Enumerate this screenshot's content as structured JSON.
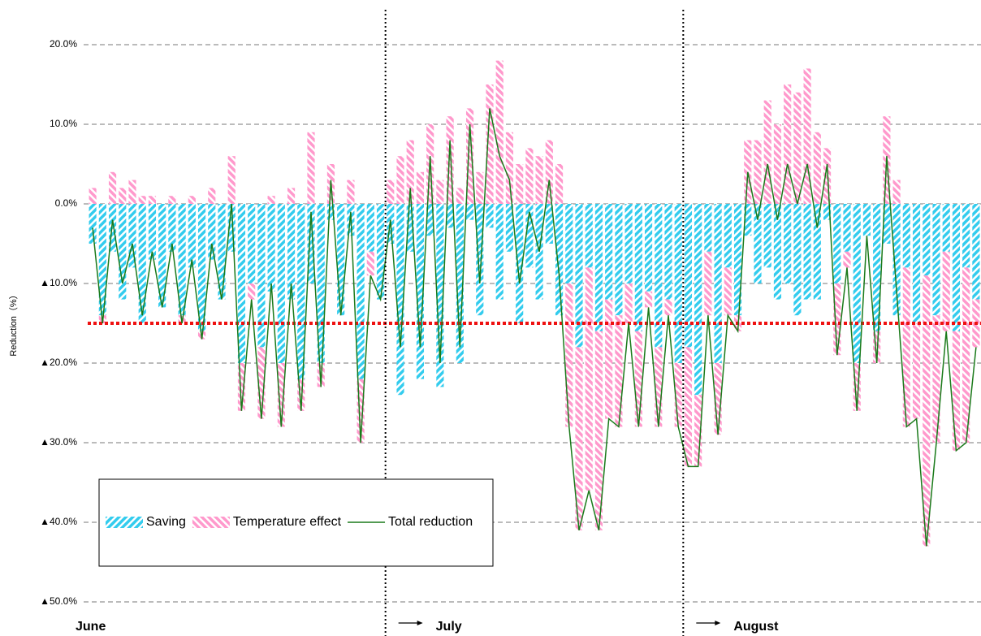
{
  "chart_data": {
    "type": "bar",
    "y_label": "Reduction（%）",
    "categories": [
      "June",
      null,
      null,
      null,
      null,
      null,
      null,
      null,
      null,
      null,
      null,
      null,
      null,
      null,
      null,
      null,
      null,
      null,
      null,
      null,
      null,
      null,
      null,
      null,
      null,
      null,
      null,
      null,
      null,
      null,
      "July",
      null,
      null,
      null,
      null,
      null,
      null,
      null,
      null,
      null,
      null,
      null,
      null,
      null,
      null,
      null,
      null,
      null,
      null,
      null,
      null,
      null,
      null,
      null,
      null,
      null,
      null,
      null,
      null,
      null,
      "August",
      null,
      null,
      null,
      null,
      null,
      null,
      null,
      null,
      null,
      null,
      null,
      null,
      null,
      null,
      null,
      null,
      null,
      null,
      null,
      null,
      null,
      null,
      null,
      null,
      null,
      null,
      null,
      null,
      null
    ],
    "series": [
      {
        "name": "Saving",
        "type": "bar",
        "color": "#33ccee",
        "values": [
          -5,
          -14,
          -6,
          -12,
          -8,
          -15,
          -7,
          -13,
          -6,
          -14,
          -8,
          -16,
          -7,
          -12,
          -6,
          -20,
          -10,
          -18,
          -11,
          -20,
          -12,
          -22,
          -10,
          -20,
          -2,
          -14,
          -4,
          -22,
          -6,
          -12,
          -5,
          -24,
          -6,
          -22,
          -4,
          -23,
          -3,
          -20,
          -2,
          -14,
          -3,
          -12,
          -6,
          -15,
          -8,
          -12,
          -5,
          -14,
          -10,
          -18,
          -8,
          -16,
          -12,
          -14,
          -10,
          -16,
          -11,
          -18,
          -12,
          -20,
          -18,
          -24,
          -6,
          -20,
          -8,
          -14,
          -4,
          -10,
          -8,
          -12,
          -10,
          -14,
          -12,
          -12,
          -2,
          -10,
          -6,
          -20,
          -4,
          -16,
          -5,
          -14,
          -8,
          -15,
          -9,
          -14,
          -6,
          -16,
          -8,
          -12
        ]
      },
      {
        "name": "Temperature effect",
        "type": "bar",
        "color": "#ff99cc",
        "values": [
          2,
          -1,
          4,
          2,
          3,
          1,
          1,
          0,
          1,
          -1,
          1,
          -1,
          2,
          0,
          6,
          -6,
          -2,
          -9,
          1,
          -8,
          2,
          -4,
          9,
          -3,
          5,
          0,
          3,
          -8,
          -3,
          0,
          3,
          6,
          8,
          4,
          10,
          3,
          11,
          2,
          12,
          4,
          15,
          18,
          9,
          5,
          7,
          6,
          8,
          5,
          -18,
          -23,
          -28,
          -25,
          -15,
          -14,
          -5,
          -12,
          -2,
          -10,
          -2,
          -8,
          -15,
          -9,
          -8,
          -9,
          -6,
          -2,
          8,
          8,
          13,
          10,
          15,
          14,
          17,
          9,
          7,
          -9,
          -2,
          -6,
          0,
          -4,
          11,
          3,
          -20,
          -12,
          -34,
          -16,
          -10,
          -15,
          -22,
          -6
        ]
      },
      {
        "name": "Total reduction",
        "type": "line",
        "color": "#1a7a1a",
        "values": [
          -3,
          -15,
          -2,
          -10,
          -5,
          -14,
          -6,
          -13,
          -5,
          -15,
          -7,
          -17,
          -5,
          -12,
          0,
          -26,
          -12,
          -27,
          -10,
          -28,
          -10,
          -26,
          -1,
          -23,
          3,
          -14,
          -1,
          -30,
          -9,
          -12,
          -2,
          -18,
          2,
          -18,
          6,
          -20,
          8,
          -18,
          10,
          -10,
          12,
          6,
          3,
          -10,
          -1,
          -6,
          3,
          -9,
          -28,
          -41,
          -36,
          -41,
          -27,
          -28,
          -15,
          -28,
          -13,
          -28,
          -14,
          -28,
          -33,
          -33,
          -14,
          -29,
          -14,
          -16,
          4,
          -2,
          5,
          -2,
          5,
          0,
          5,
          -3,
          5,
          -19,
          -8,
          -26,
          -4,
          -20,
          6,
          -11,
          -28,
          -27,
          -43,
          -30,
          -16,
          -31,
          -30,
          -18
        ]
      }
    ],
    "reference_line": {
      "value": -15,
      "color": "#ee1111"
    },
    "ylim": [
      -50,
      20
    ],
    "yticks": [
      {
        "value": 20,
        "label": "20.0%"
      },
      {
        "value": 10,
        "label": "10.0%"
      },
      {
        "value": 0,
        "label": "0.0%"
      },
      {
        "value": -10,
        "label": "▲10.0%"
      },
      {
        "value": -20,
        "label": "▲20.0%"
      },
      {
        "value": -30,
        "label": "▲30.0%"
      },
      {
        "value": -40,
        "label": "▲40.0%"
      },
      {
        "value": -50,
        "label": "▲50.0%"
      }
    ],
    "grid": true,
    "legend": "lower left"
  }
}
